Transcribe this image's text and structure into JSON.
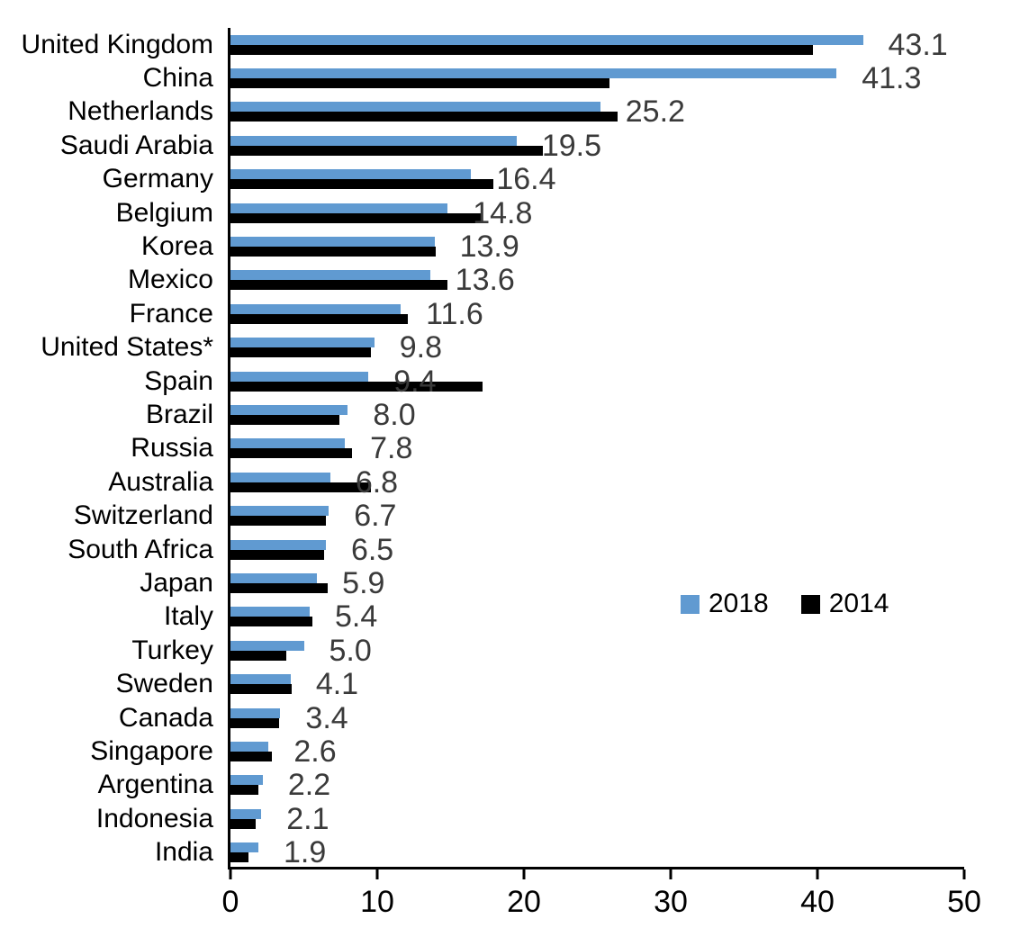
{
  "chart_data": {
    "type": "bar",
    "orientation": "horizontal",
    "title": "",
    "xlabel": "",
    "ylabel": "",
    "xlim": [
      0,
      50
    ],
    "xticks": [
      "0",
      "10",
      "20",
      "30",
      "40",
      "50"
    ],
    "xtick_values": [
      0,
      10,
      20,
      30,
      40,
      50
    ],
    "grid": false,
    "legend_position": "middle-right",
    "value_label_color": "#3A3A3A",
    "categories": [
      "United Kingdom",
      "China",
      "Netherlands",
      "Saudi Arabia",
      "Germany",
      "Belgium",
      "Korea",
      "Mexico",
      "France",
      "United States*",
      "Spain",
      "Brazil",
      "Russia",
      "Australia",
      "Switzerland",
      "South Africa",
      "Japan",
      "Italy",
      "Turkey",
      "Sweden",
      "Canada",
      "Singapore",
      "Argentina",
      "Indonesia",
      "India"
    ],
    "series": [
      {
        "name": "2018",
        "color": "#609AD1",
        "values": [
          43.1,
          41.3,
          25.2,
          19.5,
          16.4,
          14.8,
          13.9,
          13.6,
          11.6,
          9.8,
          9.4,
          8.0,
          7.8,
          6.8,
          6.7,
          6.5,
          5.9,
          5.4,
          5.0,
          4.1,
          3.4,
          2.6,
          2.2,
          2.1,
          1.9
        ],
        "value_labels": [
          "43.1",
          "41.3",
          "25.2",
          "19.5",
          "16.4",
          "14.8",
          "13.9",
          "13.6",
          "11.6",
          "9.8",
          "9.4",
          "8.0",
          "7.8",
          "6.8",
          "6.7",
          "6.5",
          "5.9",
          "5.4",
          "5.0",
          "4.1",
          "3.4",
          "2.6",
          "2.2",
          "2.1",
          "1.9"
        ]
      },
      {
        "name": "2014",
        "color": "#000000",
        "values": [
          39.7,
          25.8,
          26.4,
          21.3,
          17.9,
          17.2,
          14.0,
          14.8,
          12.1,
          9.6,
          17.2,
          7.4,
          8.3,
          9.6,
          6.5,
          6.4,
          6.6,
          5.6,
          3.8,
          4.2,
          3.3,
          2.8,
          1.9,
          1.7,
          1.2
        ]
      }
    ]
  }
}
